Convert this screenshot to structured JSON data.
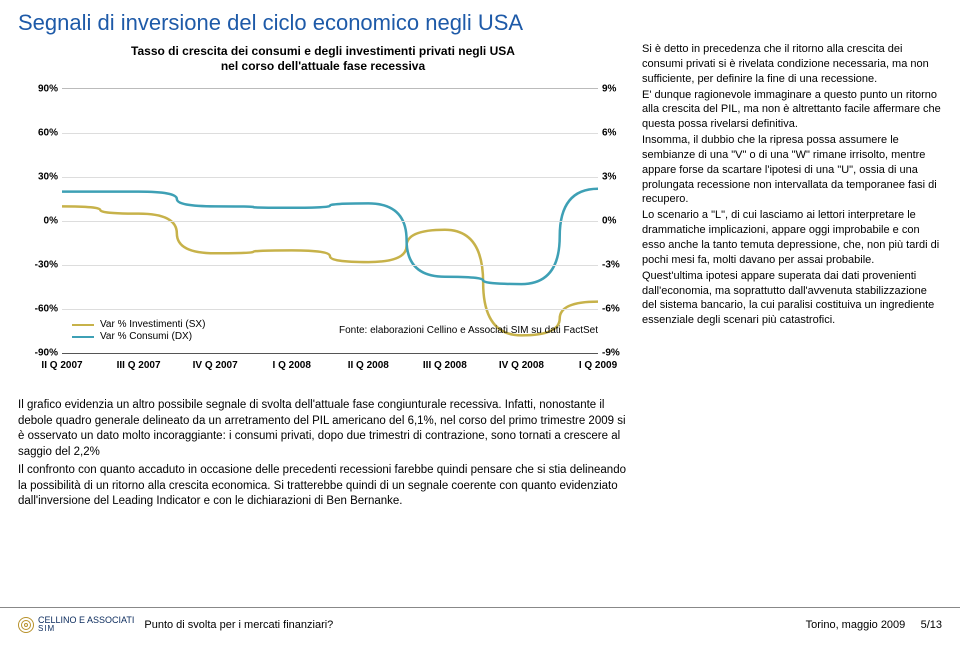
{
  "title_color": "#1e5aa8",
  "title": "Segnali di inversione del ciclo economico negli USA",
  "chart": {
    "type": "line",
    "title_lines": [
      "Tasso di crescita dei consumi e degli investimenti privati negli USA",
      "nel corso dell'attuale fase recessiva"
    ],
    "source": "Fonte: elaborazioni Cellino e Associati SIM su dati FactSet",
    "background_color": "#ffffff",
    "grid_color": "#dddddd",
    "axis_color": "#555555",
    "left_axis": {
      "min": -90,
      "max": 90,
      "step": 30,
      "suffix": "%"
    },
    "right_axis": {
      "min": -9,
      "max": 9,
      "step": 3,
      "suffix": "%"
    },
    "x_labels": [
      "II Q 2007",
      "III Q 2007",
      "IV Q 2007",
      "I Q 2008",
      "II Q 2008",
      "III Q 2008",
      "IV Q 2008",
      "I Q 2009"
    ],
    "series": [
      {
        "name": "Var % Investimenti (SX)",
        "color": "#c7b24a",
        "axis": "left",
        "width": 2.5,
        "data": [
          10,
          5,
          -22,
          -20,
          -28,
          -6,
          -78,
          -55
        ]
      },
      {
        "name": "Var % Consumi (DX)",
        "color": "#3ea0b5",
        "axis": "right",
        "width": 2.5,
        "data": [
          2.0,
          2.0,
          1.0,
          0.9,
          1.2,
          -3.8,
          -4.3,
          2.2
        ]
      }
    ],
    "legend_pos": "bottom-left",
    "title_fontsize": 12,
    "tick_fontsize": 10
  },
  "left_paragraphs": [
    "Il grafico evidenzia un altro possibile segnale di svolta dell'attuale fase congiunturale recessiva. Infatti, nonostante il debole quadro generale delineato da un arretramento del PIL americano del 6,1%, nel corso del primo trimestre 2009 si è osservato un dato molto incoraggiante: i consumi privati, dopo due trimestri di contrazione, sono tornati a crescere al saggio del 2,2%",
    "Il confronto con quanto accaduto in occasione delle precedenti recessioni farebbe quindi pensare che si stia delineando la possibilità di un ritorno alla crescita economica. Si tratterebbe quindi di un segnale coerente con quanto evidenziato dall'inversione del Leading Indicator e con le dichiarazioni di Ben Bernanke."
  ],
  "right_paragraphs": [
    "Si è detto in precedenza che il ritorno alla crescita dei consumi privati si è rivelata condizione necessaria, ma non sufficiente, per definire la fine di una recessione.",
    "E' dunque ragionevole immaginare a questo punto un ritorno alla crescita del PIL, ma non è altrettanto facile affermare che questa possa rivelarsi definitiva.",
    "Insomma, il dubbio che la ripresa possa assumere le sembianze di una \"V\" o di una \"W\" rimane irrisolto, mentre appare forse da scartare l'ipotesi di una \"U\", ossia di una prolungata recessione non intervallata da temporanee fasi di recupero.",
    "Lo scenario a \"L\", di cui lasciamo ai lettori interpretare le drammatiche implicazioni, appare oggi improbabile e con esso anche la tanto temuta depressione, che, non più tardi di pochi mesi fa, molti davano per assai probabile.",
    "Quest'ultima ipotesi appare superata dai dati provenienti dall'economia, ma soprattutto dall'avvenuta stabilizzazione del sistema bancario, la cui paralisi costituiva un ingrediente essenziale degli scenari più catastrofici."
  ],
  "footer": {
    "logo_top": "CELLINO E ASSOCIATI",
    "logo_sub": "SIM",
    "center": "Punto di svolta per i mercati finanziari?",
    "right": "Torino, maggio 2009",
    "page": "5/13"
  }
}
